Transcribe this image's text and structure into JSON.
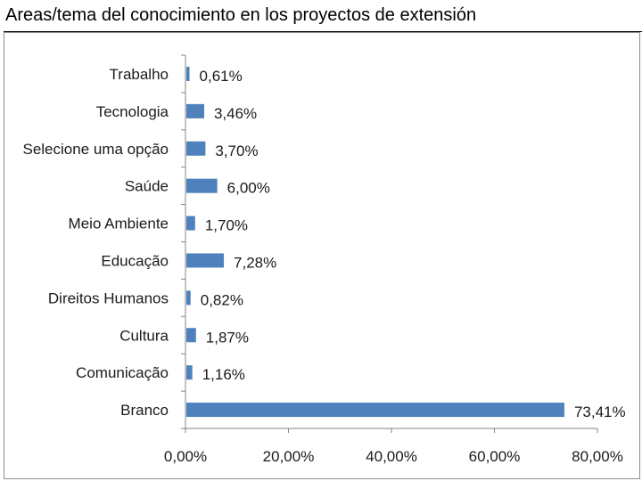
{
  "page": {
    "title": "Areas/tema del conocimiento en los proyectos de extensión"
  },
  "chart_data": {
    "type": "bar",
    "orientation": "horizontal",
    "categories": [
      "Trabalho",
      "Tecnologia",
      "Selecione uma opção",
      "Saúde",
      "Meio Ambiente",
      "Educação",
      "Direitos Humanos",
      "Cultura",
      "Comunicação",
      "Branco"
    ],
    "values": [
      0.61,
      3.46,
      3.7,
      6.0,
      1.7,
      7.28,
      0.82,
      1.87,
      1.16,
      73.41
    ],
    "value_labels": [
      "0,61%",
      "3,46%",
      "3,70%",
      "6,00%",
      "1,70%",
      "7,28%",
      "0,82%",
      "1,87%",
      "1,16%",
      "73,41%"
    ],
    "xlim": [
      0,
      80
    ],
    "x_ticks": [
      0,
      20,
      40,
      60,
      80
    ],
    "x_tick_labels": [
      "0,00%",
      "20,00%",
      "40,00%",
      "60,00%",
      "80,00%"
    ],
    "grid": false,
    "legend": "none",
    "bar_color": "#4f81bd"
  }
}
